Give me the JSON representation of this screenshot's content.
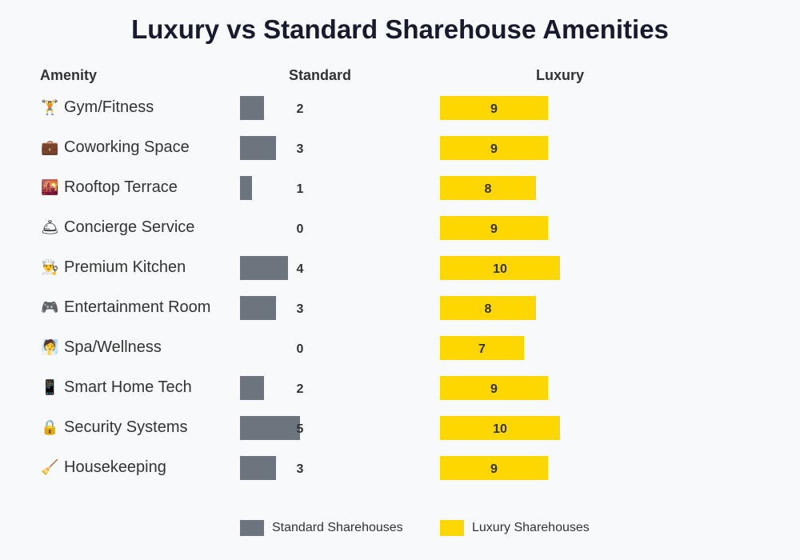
{
  "chart_data": {
    "type": "bar",
    "title": "Luxury vs Standard Sharehouse Amenities",
    "column_headers": {
      "amenity": "Amenity",
      "standard": "Standard",
      "luxury": "Luxury"
    },
    "categories": [
      "Gym/Fitness",
      "Coworking Space",
      "Rooftop Terrace",
      "Concierge Service",
      "Premium Kitchen",
      "Entertainment Room",
      "Spa/Wellness",
      "Smart Home Tech",
      "Security Systems",
      "Housekeeping"
    ],
    "icons": [
      {
        "name": "weightlifter-icon",
        "glyph": "🏋"
      },
      {
        "name": "briefcase-icon",
        "glyph": "💼"
      },
      {
        "name": "city-sunset-icon",
        "glyph": "🌇"
      },
      {
        "name": "bellhop-bell-icon",
        "glyph": "🛎"
      },
      {
        "name": "chef-icon",
        "glyph": "👨‍🍳"
      },
      {
        "name": "game-controller-icon",
        "glyph": "🎮"
      },
      {
        "name": "sauna-person-icon",
        "glyph": "🧖"
      },
      {
        "name": "mobile-phone-icon",
        "glyph": "📱"
      },
      {
        "name": "lock-icon",
        "glyph": "🔒"
      },
      {
        "name": "broom-icon",
        "glyph": "🧹"
      }
    ],
    "series": [
      {
        "name": "Standard Sharehouses",
        "color": "#6c757d",
        "values": [
          2,
          3,
          1,
          0,
          4,
          3,
          0,
          2,
          5,
          3
        ]
      },
      {
        "name": "Luxury Sharehouses",
        "color": "#ffd700",
        "values": [
          9,
          9,
          8,
          9,
          10,
          8,
          7,
          9,
          10,
          9
        ]
      }
    ],
    "legend_placement": "bottom",
    "grid": false
  }
}
